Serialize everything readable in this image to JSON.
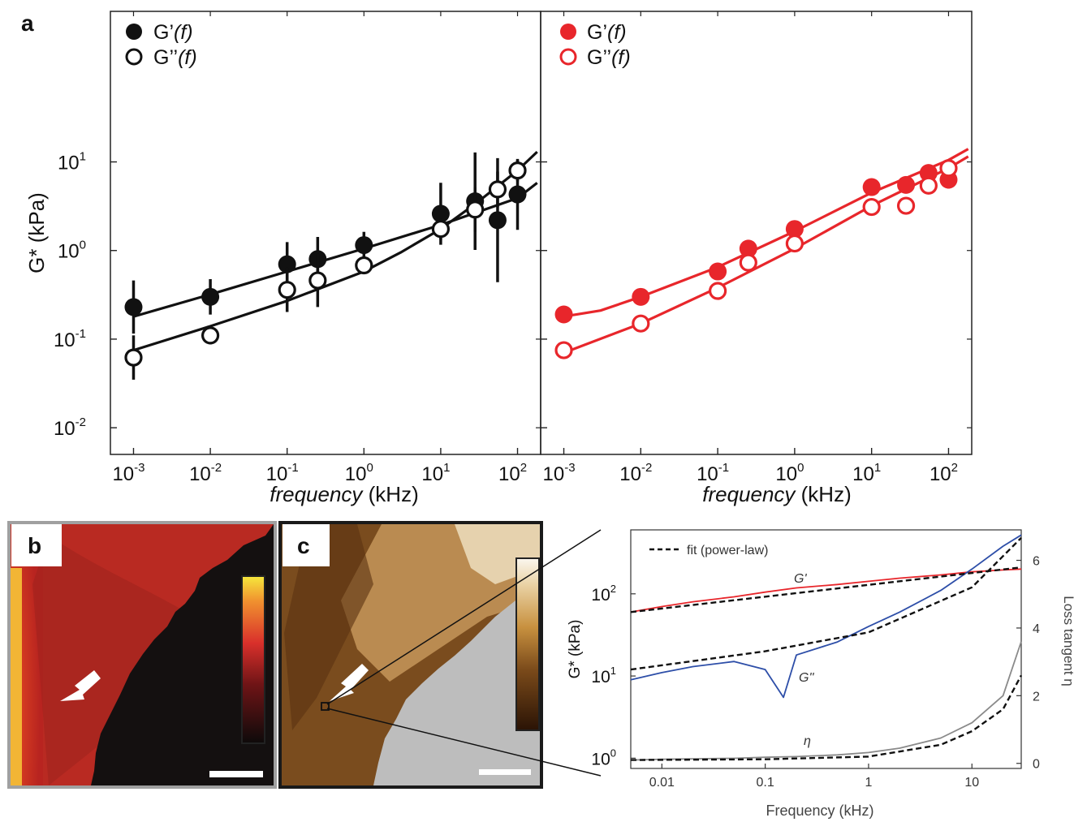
{
  "panel_labels": {
    "a": "a",
    "b": "b",
    "c": "c"
  },
  "chart_data": [
    {
      "type": "scatter",
      "panel": "a-left",
      "xlabel_italic": "frequency",
      "xlabel_unit": " (kHz)",
      "ylabel": "G* (kPa)",
      "x_scale": "log",
      "y_scale": "log",
      "xlim": [
        0.0005,
        200
      ],
      "ylim": [
        0.005,
        500
      ],
      "x_ticks": [
        "10",
        "10",
        "10",
        "10",
        "10",
        "10"
      ],
      "x_tick_exponents": [
        "-3",
        "-2",
        "-1",
        "0",
        "1",
        "2"
      ],
      "y_ticks": [
        "10",
        "10",
        "10",
        "10"
      ],
      "y_tick_exponents": [
        "-2",
        "-1",
        "0",
        "1"
      ],
      "color": "#111111",
      "legend": [
        {
          "marker": "filled",
          "text": "G’",
          "italic": "(f)"
        },
        {
          "marker": "open",
          "text": "G’’",
          "italic": "(f)"
        }
      ],
      "series": [
        {
          "name": "G’(f)",
          "marker": "filled",
          "x": [
            0.001,
            0.01,
            0.1,
            0.25,
            1,
            10,
            28,
            55,
            100
          ],
          "y": [
            0.23,
            0.3,
            0.7,
            0.8,
            1.15,
            2.6,
            3.6,
            2.2,
            4.3
          ],
          "err": [
            0.3,
            0.2,
            0.25,
            0.25,
            0.15,
            0.35,
            0.55,
            0.7,
            0.4
          ]
        },
        {
          "name": "G’’(f)",
          "marker": "open",
          "x": [
            0.001,
            0.01,
            0.1,
            0.25,
            1,
            10,
            28,
            55,
            100
          ],
          "y": [
            0.062,
            0.11,
            0.36,
            0.46,
            0.68,
            1.75,
            2.9,
            4.9,
            8.0
          ],
          "err": [
            0.25,
            0.1,
            0.25,
            0.3,
            0.1,
            0.12,
            0.25,
            0.2,
            0.12
          ]
        }
      ],
      "fit_lines": [
        {
          "x": [
            0.001,
            0.01,
            0.1,
            1,
            10,
            100,
            180
          ],
          "y": [
            0.18,
            0.32,
            0.58,
            1.05,
            1.95,
            3.9,
            5.8
          ]
        },
        {
          "x": [
            0.001,
            0.01,
            0.1,
            1,
            3,
            10,
            30,
            100,
            180
          ],
          "y": [
            0.075,
            0.14,
            0.27,
            0.58,
            0.95,
            1.75,
            3.5,
            8.0,
            13
          ]
        }
      ]
    },
    {
      "type": "scatter",
      "panel": "a-right",
      "xlabel_italic": "frequency",
      "xlabel_unit": " (kHz)",
      "x_scale": "log",
      "y_scale": "log",
      "xlim": [
        0.0005,
        200
      ],
      "ylim": [
        0.005,
        500
      ],
      "x_ticks": [
        "10",
        "10",
        "10",
        "10",
        "10",
        "10"
      ],
      "x_tick_exponents": [
        "-3",
        "-2",
        "-1",
        "0",
        "1",
        "2"
      ],
      "color": "#e8262b",
      "legend": [
        {
          "marker": "filled",
          "text": "G’",
          "italic": "(f)"
        },
        {
          "marker": "open",
          "text": "G’’",
          "italic": "(f)"
        }
      ],
      "series": [
        {
          "name": "G’(f)",
          "marker": "filled",
          "x": [
            0.001,
            0.01,
            0.1,
            0.25,
            1,
            10,
            28,
            55,
            100
          ],
          "y": [
            0.19,
            0.3,
            0.58,
            1.05,
            1.75,
            5.2,
            5.5,
            7.5,
            6.3
          ],
          "err": [
            0.05,
            0.08,
            0.05,
            0.1,
            0.08,
            0.05,
            0.05,
            0.06,
            0.1
          ]
        },
        {
          "name": "G’’(f)",
          "marker": "open",
          "x": [
            0.001,
            0.01,
            0.1,
            0.25,
            1,
            10,
            28,
            55,
            100
          ],
          "y": [
            0.075,
            0.15,
            0.35,
            0.73,
            1.2,
            3.1,
            3.2,
            5.4,
            8.5
          ],
          "err": [
            0.04,
            0.05,
            0.05,
            0.05,
            0.05,
            0.05,
            0.08,
            0.05,
            0.04
          ]
        }
      ],
      "fit_lines": [
        {
          "x": [
            0.001,
            0.003,
            0.01,
            0.1,
            1,
            10,
            100,
            180
          ],
          "y": [
            0.18,
            0.21,
            0.3,
            0.65,
            1.65,
            4.5,
            10.5,
            14
          ]
        },
        {
          "x": [
            0.001,
            0.01,
            0.1,
            1,
            10,
            100,
            180
          ],
          "y": [
            0.07,
            0.15,
            0.38,
            1.05,
            3.2,
            8.5,
            11.5
          ]
        }
      ]
    },
    {
      "type": "line",
      "panel": "d-spectrum",
      "xlabel": "Frequency (kHz)",
      "ylabel": "G* (kPa)",
      "y2label": "Loss tangent η",
      "x_scale": "log",
      "y_scale": "log",
      "xlim": [
        0.005,
        30
      ],
      "ylim": [
        0.75,
        600
      ],
      "y2lim": [
        -0.15,
        6.9
      ],
      "x_ticks": [
        "0.01",
        "0.1",
        "1",
        "10"
      ],
      "y_ticks": [
        "10",
        "10",
        "10"
      ],
      "y_tick_exponents": [
        "0",
        "1",
        "2"
      ],
      "y2_ticks": [
        "0",
        "2",
        "4",
        "6"
      ],
      "legend": [
        {
          "style": "dashed",
          "text": "fit (power-law)"
        }
      ],
      "annotations": [
        "G'",
        "G''",
        "η"
      ],
      "series": [
        {
          "name": "G'",
          "color": "#e8262b",
          "x": [
            0.005,
            0.01,
            0.02,
            0.05,
            0.1,
            0.2,
            0.5,
            1,
            2,
            5,
            10,
            20,
            30
          ],
          "y": [
            60,
            70,
            80,
            92,
            105,
            118,
            130,
            142,
            155,
            170,
            185,
            195,
            200
          ]
        },
        {
          "name": "G''",
          "color": "#2d4ea8",
          "x": [
            0.005,
            0.01,
            0.02,
            0.05,
            0.1,
            0.15,
            0.2,
            0.5,
            1,
            2,
            5,
            10,
            20,
            30
          ],
          "y": [
            9,
            11,
            13,
            15,
            12,
            5.5,
            18,
            26,
            40,
            60,
            110,
            200,
            380,
            520
          ]
        },
        {
          "name": "η",
          "color": "#8a8a8a",
          "x": [
            0.005,
            0.01,
            0.05,
            0.1,
            0.2,
            0.5,
            1,
            2,
            5,
            10,
            20,
            30
          ],
          "y2": [
            0.1,
            0.12,
            0.15,
            0.18,
            0.2,
            0.25,
            0.32,
            0.45,
            0.75,
            1.2,
            2.0,
            3.6
          ]
        }
      ],
      "fit_lines": [
        {
          "x": [
            0.005,
            30
          ],
          "y": [
            60,
            210
          ]
        },
        {
          "x": [
            0.005,
            0.1,
            1,
            10,
            30
          ],
          "y": [
            12,
            20,
            34,
            120,
            480
          ]
        },
        {
          "x": [
            0.005,
            0.1,
            1,
            5,
            10,
            20,
            30
          ],
          "y2": [
            0.1,
            0.12,
            0.2,
            0.55,
            0.95,
            1.6,
            2.6
          ]
        }
      ]
    }
  ]
}
